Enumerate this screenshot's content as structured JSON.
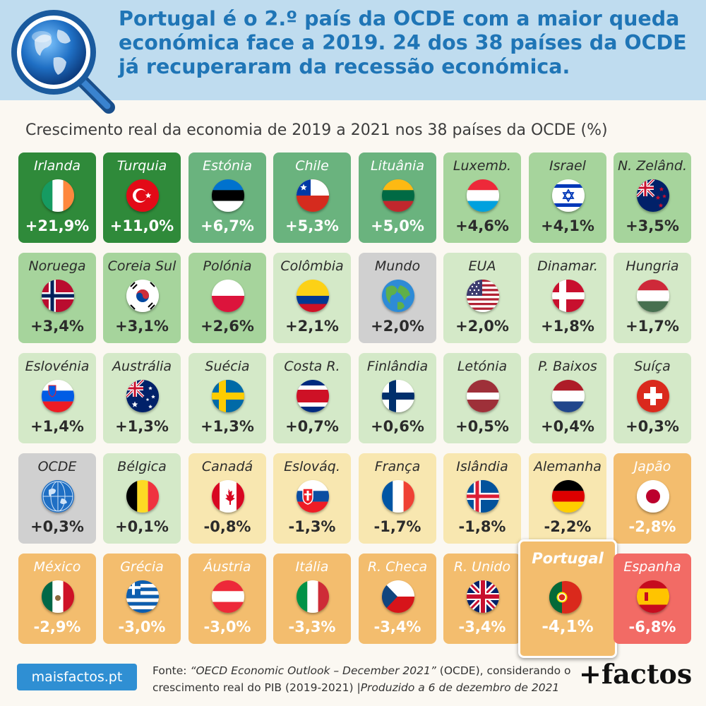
{
  "header": {
    "lines": [
      "Portugal é o 2.º país da OCDE com a maior queda",
      "económica face a 2019. 24 dos 38 países da OCDE",
      "já recuperaram da recessão económica."
    ],
    "icon": "globe-magnifier-icon"
  },
  "colors": {
    "header_bg": "#bfdcef",
    "title": "#1f75b6",
    "dark_green": "#2f8a3a",
    "mid_green": "#6ab37e",
    "light_green": "#a6d49c",
    "pale_green": "#d4e9c8",
    "gray": "#d0d0d0",
    "pale_yellow": "#f8e7b0",
    "orange": "#f3bd6e",
    "red": "#f26b65"
  },
  "chart_data": {
    "type": "table",
    "title": "Crescimento real da economia de 2019 a 2021 nos 38 países da OCDE (%)",
    "tiles": [
      {
        "name": "Irlanda",
        "value": 21.9,
        "label": "+21,9%",
        "tier": "dark_green",
        "flag": "ireland"
      },
      {
        "name": "Turquia",
        "value": 11.0,
        "label": "+11,0%",
        "tier": "dark_green",
        "flag": "turkey"
      },
      {
        "name": "Estónia",
        "value": 6.7,
        "label": "+6,7%",
        "tier": "mid_green",
        "flag": "estonia"
      },
      {
        "name": "Chile",
        "value": 5.3,
        "label": "+5,3%",
        "tier": "mid_green",
        "flag": "chile"
      },
      {
        "name": "Lituânia",
        "value": 5.0,
        "label": "+5,0%",
        "tier": "mid_green",
        "flag": "lithuania"
      },
      {
        "name": "Luxemb.",
        "value": 4.6,
        "label": "+4,6%",
        "tier": "light_green",
        "flag": "luxembourg"
      },
      {
        "name": "Israel",
        "value": 4.1,
        "label": "+4,1%",
        "tier": "light_green",
        "flag": "israel"
      },
      {
        "name": "N. Zelând.",
        "value": 3.5,
        "label": "+3,5%",
        "tier": "light_green",
        "flag": "new-zealand"
      },
      {
        "name": "Noruega",
        "value": 3.4,
        "label": "+3,4%",
        "tier": "light_green",
        "flag": "norway"
      },
      {
        "name": "Coreia Sul",
        "value": 3.1,
        "label": "+3,1%",
        "tier": "light_green",
        "flag": "south-korea"
      },
      {
        "name": "Polónia",
        "value": 2.6,
        "label": "+2,6%",
        "tier": "light_green",
        "flag": "poland"
      },
      {
        "name": "Colômbia",
        "value": 2.1,
        "label": "+2,1%",
        "tier": "pale_green",
        "flag": "colombia"
      },
      {
        "name": "Mundo",
        "value": 2.0,
        "label": "+2,0%",
        "tier": "gray",
        "flag": "world"
      },
      {
        "name": "EUA",
        "value": 2.0,
        "label": "+2,0%",
        "tier": "pale_green",
        "flag": "usa"
      },
      {
        "name": "Dinamar.",
        "value": 1.8,
        "label": "+1,8%",
        "tier": "pale_green",
        "flag": "denmark"
      },
      {
        "name": "Hungria",
        "value": 1.7,
        "label": "+1,7%",
        "tier": "pale_green",
        "flag": "hungary"
      },
      {
        "name": "Eslovénia",
        "value": 1.4,
        "label": "+1,4%",
        "tier": "pale_green",
        "flag": "slovenia"
      },
      {
        "name": "Austrália",
        "value": 1.3,
        "label": "+1,3%",
        "tier": "pale_green",
        "flag": "australia"
      },
      {
        "name": "Suécia",
        "value": 1.3,
        "label": "+1,3%",
        "tier": "pale_green",
        "flag": "sweden"
      },
      {
        "name": "Costa R.",
        "value": 0.7,
        "label": "+0,7%",
        "tier": "pale_green",
        "flag": "costa-rica"
      },
      {
        "name": "Finlândia",
        "value": 0.6,
        "label": "+0,6%",
        "tier": "pale_green",
        "flag": "finland"
      },
      {
        "name": "Letónia",
        "value": 0.5,
        "label": "+0,5%",
        "tier": "pale_green",
        "flag": "latvia"
      },
      {
        "name": "P. Baixos",
        "value": 0.4,
        "label": "+0,4%",
        "tier": "pale_green",
        "flag": "netherlands"
      },
      {
        "name": "Suíça",
        "value": 0.3,
        "label": "+0,3%",
        "tier": "pale_green",
        "flag": "switzerland"
      },
      {
        "name": "OCDE",
        "value": 0.3,
        "label": "+0,3%",
        "tier": "gray",
        "flag": "world"
      },
      {
        "name": "Bélgica",
        "value": 0.1,
        "label": "+0,1%",
        "tier": "pale_green",
        "flag": "belgium"
      },
      {
        "name": "Canadá",
        "value": -0.8,
        "label": "-0,8%",
        "tier": "pale_yellow",
        "flag": "canada"
      },
      {
        "name": "Eslováq.",
        "value": -1.3,
        "label": "-1,3%",
        "tier": "pale_yellow",
        "flag": "slovakia"
      },
      {
        "name": "França",
        "value": -1.7,
        "label": "-1,7%",
        "tier": "pale_yellow",
        "flag": "france"
      },
      {
        "name": "Islândia",
        "value": -1.8,
        "label": "-1,8%",
        "tier": "pale_yellow",
        "flag": "iceland"
      },
      {
        "name": "Alemanha",
        "value": -2.2,
        "label": "-2,2%",
        "tier": "pale_yellow",
        "flag": "germany"
      },
      {
        "name": "Japão",
        "value": -2.8,
        "label": "-2,8%",
        "tier": "orange",
        "flag": "japan"
      },
      {
        "name": "México",
        "value": -2.9,
        "label": "-2,9%",
        "tier": "orange",
        "flag": "mexico"
      },
      {
        "name": "Grécia",
        "value": -3.0,
        "label": "-3,0%",
        "tier": "orange",
        "flag": "greece"
      },
      {
        "name": "Áustria",
        "value": -3.0,
        "label": "-3,0%",
        "tier": "orange",
        "flag": "austria"
      },
      {
        "name": "Itália",
        "value": -3.3,
        "label": "-3,3%",
        "tier": "orange",
        "flag": "italy"
      },
      {
        "name": "R. Checa",
        "value": -3.4,
        "label": "-3,4%",
        "tier": "orange",
        "flag": "czechia"
      },
      {
        "name": "R. Unido",
        "value": -3.4,
        "label": "-3,4%",
        "tier": "orange",
        "flag": "uk"
      },
      {
        "name": "Portugal",
        "value": -4.1,
        "label": "-4,1%",
        "tier": "orange",
        "flag": "portugal",
        "highlight": true
      },
      {
        "name": "Espanha",
        "value": -6.8,
        "label": "-6,8%",
        "tier": "red",
        "flag": "spain"
      }
    ]
  },
  "footer": {
    "site": "maisfactos.pt",
    "source_pre": "Fonte: ",
    "source_b1": "“OECD Economic Outlook – December 2021”",
    "source_b2": " (OCDE), considerando o crescimento real do PIB (2019-2021) |",
    "source_b3": "Produzido a 6 de dezembro de 2021",
    "brand": "+factos"
  }
}
